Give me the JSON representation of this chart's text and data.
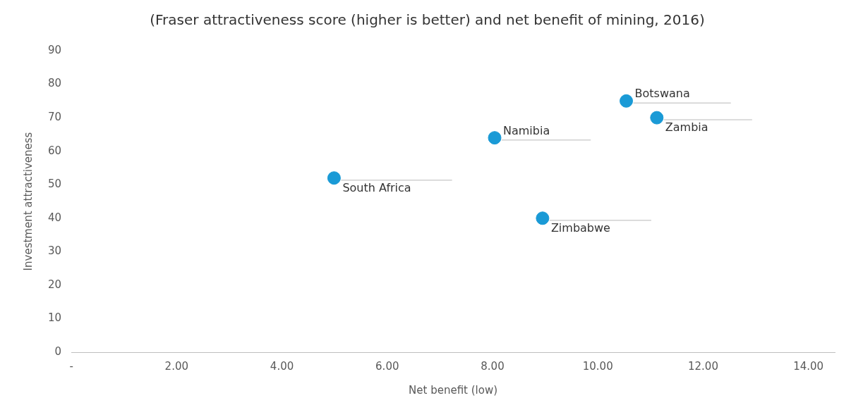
{
  "chart_data": {
    "type": "scatter",
    "title": "(Fraser attractiveness score (higher is better) and net benefit of mining, 2016)",
    "xlabel": "Net benefit (low)",
    "ylabel": "Investment attractiveness",
    "series": [
      {
        "color": "#1a9ad6",
        "x": [
          4.99,
          8.04,
          10.54,
          11.12,
          8.95
        ],
        "values": [
          52,
          64,
          75,
          70,
          40
        ]
      }
    ],
    "annotations": [
      {
        "text": "South Africa",
        "x": 4.99,
        "y": 52
      },
      {
        "text": "Namibia",
        "x": 8.04,
        "y": 64
      },
      {
        "text": "Botswana",
        "x": 10.54,
        "y": 75
      },
      {
        "text": "Zambia",
        "x": 11.12,
        "y": 70
      },
      {
        "text": "Zimbabwe",
        "x": 8.95,
        "y": 40
      }
    ],
    "xlim": [
      0,
      14.5
    ],
    "xticks": [
      {
        "value": 0,
        "label": "-"
      },
      {
        "value": 2,
        "label": "2.00"
      },
      {
        "value": 4,
        "label": "4.00"
      },
      {
        "value": 6,
        "label": "6.00"
      },
      {
        "value": 8,
        "label": "8.00"
      },
      {
        "value": 10,
        "label": "10.00"
      },
      {
        "value": 12,
        "label": "12.00"
      },
      {
        "value": 14,
        "label": "14.00"
      }
    ],
    "ylim": [
      0,
      90
    ],
    "yticks": [
      0,
      10,
      20,
      30,
      40,
      50,
      60,
      70,
      80,
      90
    ],
    "grid": false,
    "legend": false,
    "marker": "circle"
  }
}
